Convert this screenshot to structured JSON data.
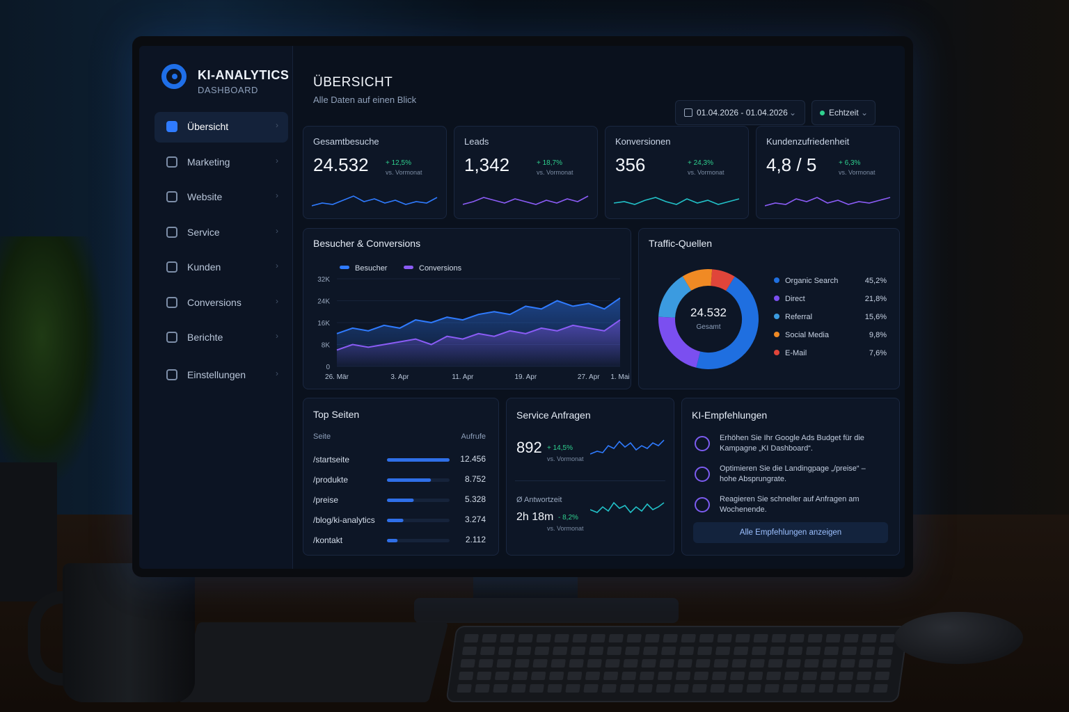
{
  "sidebar": {
    "brand": "KI-ANALYTICS",
    "subtitle": "DASHBOARD",
    "nav": [
      "Übersicht",
      "Marketing",
      "Website",
      "Service",
      "Kunden",
      "Conversions",
      "Berichte",
      "Einstellungen"
    ]
  },
  "header": {
    "title": "ÜBERSICHT",
    "subtitle": "Alle Daten auf einen Blick",
    "date_range": "01.04.2026 - 01.04.2026",
    "mode": "Echtzeit"
  },
  "kpis": [
    {
      "label": "Gesamtbesuche",
      "value": "24.532",
      "change": "+ 12,5%",
      "note": "vs. Vormonat"
    },
    {
      "label": "Leads",
      "value": "1,342",
      "change": "+ 18,7%",
      "note": "vs. Vormonat"
    },
    {
      "label": "Konversionen",
      "value": "356",
      "change": "+ 24,3%",
      "note": "vs. Vormonat"
    },
    {
      "label": "Kundenzufriedenheit",
      "value": "4,8 / 5",
      "change": "+ 6,3%",
      "note": "vs. Vormonat"
    }
  ],
  "chart_data": [
    {
      "type": "line",
      "title": "Besucher & Conversions",
      "categories": [
        "26. Mär",
        null,
        null,
        null,
        "3. Apr",
        null,
        null,
        null,
        "11. Apr",
        null,
        null,
        null,
        "19. Apr",
        null,
        null,
        null,
        "27. Apr",
        null,
        "1. Mai"
      ],
      "series": [
        {
          "name": "Besucher",
          "color": "#2f7bff",
          "values": [
            12000,
            14000,
            13000,
            15000,
            14000,
            17000,
            16000,
            18000,
            17000,
            19000,
            20000,
            19000,
            22000,
            21000,
            24000,
            22000,
            23000,
            21000,
            25000
          ]
        },
        {
          "name": "Conversions",
          "color": "#8b5cf6",
          "values": [
            6000,
            8000,
            7000,
            8000,
            9000,
            10000,
            8000,
            11000,
            10000,
            12000,
            11000,
            13000,
            12000,
            14000,
            13000,
            15000,
            14000,
            13000,
            17000
          ]
        }
      ],
      "ylim": [
        0,
        32000
      ],
      "yticks": [
        0,
        {
          "value": 8000,
          "label": "8K"
        },
        {
          "value": 16000,
          "label": "16K"
        },
        {
          "value": 24000,
          "label": "24K"
        },
        {
          "value": 32000,
          "label": "32K"
        }
      ],
      "grid": true
    },
    {
      "type": "donut",
      "title": "Traffic-Quellen",
      "center_value": "24.532",
      "center_label": "Gesamt",
      "categories": [
        "Organic Search",
        "Direct",
        "Referral",
        "Social Media",
        "E-Mail"
      ],
      "values": [
        45.2,
        21.8,
        15.6,
        9.8,
        7.6
      ],
      "value_labels": [
        "45,2%",
        "21,8%",
        "15,6%",
        "9,8%",
        "7,6%"
      ],
      "colors": [
        "#1f6fe0",
        "#7b4ff0",
        "#3b9be0",
        "#f08a24",
        "#e0453a"
      ]
    },
    {
      "type": "hbar",
      "title": "Top Seiten",
      "column_headers": [
        "Seite",
        "Aufrufe"
      ],
      "categories": [
        "/startseite",
        "/produkte",
        "/preise",
        "/blog/ki-analytics",
        "/kontakt"
      ],
      "values": [
        12456,
        8752,
        5328,
        3274,
        2112
      ],
      "value_labels": [
        "12.456",
        "8.752",
        "5.328",
        "3.274",
        "2.112"
      ],
      "color": "#2f6fe8"
    }
  ],
  "service": {
    "title": "Service Anfragen",
    "value": "892",
    "change": "+ 14,5%",
    "note": "vs. Vormonat",
    "metric2_label": "Ø Antwortzeit",
    "metric2_value": "2h 18m",
    "metric2_change": "- 8,2%",
    "metric2_note": "vs. Vormonat"
  },
  "recommendations": {
    "title": "KI-Empfehlungen",
    "items": [
      "Erhöhen Sie Ihr Google Ads Budget für die Kampagne „KI Dashboard“.",
      "Optimieren Sie die Landingpage „/preise“ – hohe Absprungrate.",
      "Reagieren Sie schneller auf Anfragen am Wochenende."
    ],
    "button": "Alle Empfehlungen anzeigen"
  }
}
